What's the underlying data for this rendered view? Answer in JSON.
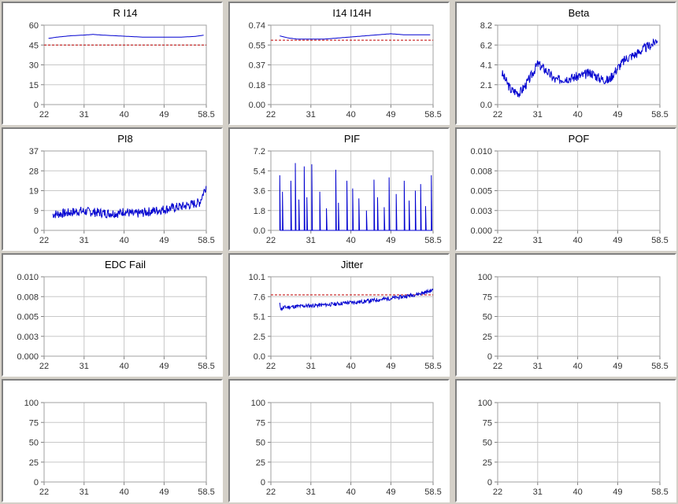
{
  "charts": [
    {
      "title": "R I14",
      "yticks": [
        "0",
        "15",
        "30",
        "45",
        "60"
      ],
      "ylim": [
        0,
        60
      ],
      "xticks": [
        "22",
        "31",
        "40",
        "49",
        "58.5"
      ],
      "xlim": [
        22,
        58.5
      ],
      "series": {
        "kind": "smooth",
        "x": [
          23,
          25,
          28,
          31,
          33,
          35,
          38,
          41,
          44,
          47,
          50,
          53,
          56,
          58
        ],
        "y": [
          50,
          51,
          52,
          52.5,
          53,
          52.5,
          52,
          51.5,
          51,
          51,
          51,
          51,
          51.5,
          52.5
        ]
      },
      "ref": 45
    },
    {
      "title": "I14 I14H",
      "yticks": [
        "0.00",
        "0.18",
        "0.37",
        "0.55",
        "0.74"
      ],
      "ylim": [
        0,
        0.74
      ],
      "xticks": [
        "22",
        "31",
        "40",
        "49",
        "58.5"
      ],
      "xlim": [
        22,
        58.5
      ],
      "series": {
        "kind": "smooth",
        "x": [
          24,
          26,
          28,
          31,
          34,
          37,
          40,
          43,
          46,
          49,
          52,
          55,
          58
        ],
        "y": [
          0.64,
          0.62,
          0.61,
          0.61,
          0.61,
          0.62,
          0.63,
          0.64,
          0.65,
          0.66,
          0.65,
          0.65,
          0.65
        ]
      },
      "ref": 0.6
    },
    {
      "title": "Beta",
      "yticks": [
        "0.0",
        "2.1",
        "4.1",
        "6.2",
        "8.2"
      ],
      "ylim": [
        0,
        8.2
      ],
      "xticks": [
        "22",
        "31",
        "40",
        "49",
        "58.5"
      ],
      "xlim": [
        22,
        58.5
      ],
      "series": {
        "kind": "noisy",
        "x": [
          23,
          25,
          27,
          29,
          31,
          33,
          35,
          37,
          39,
          41,
          43,
          45,
          47,
          49,
          51,
          53,
          55,
          57,
          58
        ],
        "y": [
          3.2,
          1.5,
          1.2,
          2.5,
          4.2,
          3.5,
          2.5,
          2.7,
          2.8,
          3.0,
          3.3,
          2.7,
          2.5,
          3.8,
          4.8,
          5.2,
          5.8,
          6.3,
          6.8
        ],
        "noise": 0.5,
        "seed": 3
      }
    },
    {
      "title": "PI8",
      "yticks": [
        "0",
        "9",
        "19",
        "28",
        "37"
      ],
      "ylim": [
        0,
        37
      ],
      "xticks": [
        "22",
        "31",
        "40",
        "49",
        "58.5"
      ],
      "xlim": [
        22,
        58.5
      ],
      "series": {
        "kind": "noisy",
        "x": [
          24,
          27,
          30,
          33,
          36,
          39,
          40,
          42,
          45,
          48,
          51,
          54,
          57,
          58.5
        ],
        "y": [
          7.5,
          8,
          9,
          8.5,
          8,
          8,
          9,
          7.5,
          8.5,
          9.5,
          10.5,
          11.5,
          13,
          21
        ],
        "noise": 2.2,
        "seed": 7
      }
    },
    {
      "title": "PIF",
      "yticks": [
        "0.0",
        "1.8",
        "3.6",
        "5.4",
        "7.2"
      ],
      "ylim": [
        0,
        7.2
      ],
      "xticks": [
        "22",
        "31",
        "40",
        "49",
        "58.5"
      ],
      "xlim": [
        22,
        58.5
      ],
      "series": {
        "kind": "spikes",
        "x": [
          24,
          24.6,
          26.5,
          27.5,
          28.3,
          29.5,
          30.1,
          31.2,
          33,
          34.5,
          36.6,
          37.2,
          39.1,
          40.4,
          41.8,
          43.5,
          45.2,
          46,
          47.5,
          48.6,
          50.2,
          52,
          53.1,
          54.5,
          55.7,
          56.8,
          58.1
        ],
        "y": [
          5.0,
          3.5,
          4.5,
          6.1,
          2.8,
          5.8,
          3.0,
          6.0,
          3.5,
          2.0,
          5.5,
          2.5,
          4.5,
          3.8,
          2.9,
          1.8,
          4.6,
          3.0,
          2.1,
          4.8,
          3.3,
          4.5,
          2.7,
          3.6,
          4.2,
          2.2,
          5.0
        ]
      }
    },
    {
      "title": "POF",
      "yticks": [
        "0.000",
        "0.003",
        "0.005",
        "0.008",
        "0.010"
      ],
      "ylim": [
        0,
        0.01
      ],
      "xticks": [
        "22",
        "31",
        "40",
        "49",
        "58.5"
      ],
      "xlim": [
        22,
        58.5
      ],
      "series": null
    },
    {
      "title": "EDC Fail",
      "yticks": [
        "0.000",
        "0.003",
        "0.005",
        "0.008",
        "0.010"
      ],
      "ylim": [
        0,
        0.01
      ],
      "xticks": [
        "22",
        "31",
        "40",
        "49",
        "58.5"
      ],
      "xlim": [
        22,
        58.5
      ],
      "series": null
    },
    {
      "title": "Jitter",
      "yticks": [
        "0.0",
        "2.5",
        "5.1",
        "7.6",
        "10.1"
      ],
      "ylim": [
        0,
        10.1
      ],
      "xticks": [
        "22",
        "31",
        "40",
        "49",
        "58.5"
      ],
      "xlim": [
        22,
        58.5
      ],
      "series": {
        "kind": "noisy",
        "x": [
          24,
          24.3,
          25,
          27,
          30,
          33,
          36,
          39,
          42,
          45,
          48,
          51,
          54,
          56,
          58.5
        ],
        "y": [
          6.6,
          6.0,
          6.2,
          6.3,
          6.4,
          6.5,
          6.6,
          6.8,
          6.9,
          7.1,
          7.3,
          7.5,
          7.8,
          8.0,
          8.4
        ],
        "noise": 0.25,
        "seed": 11
      },
      "ref": 7.8
    },
    {
      "title": "",
      "yticks": [
        "0",
        "25",
        "50",
        "75",
        "100"
      ],
      "ylim": [
        0,
        100
      ],
      "xticks": [
        "22",
        "31",
        "40",
        "49",
        "58.5"
      ],
      "xlim": [
        22,
        58.5
      ],
      "series": null
    },
    {
      "title": "",
      "yticks": [
        "0",
        "25",
        "50",
        "75",
        "100"
      ],
      "ylim": [
        0,
        100
      ],
      "xticks": [
        "22",
        "31",
        "40",
        "49",
        "58.5"
      ],
      "xlim": [
        22,
        58.5
      ],
      "series": null
    },
    {
      "title": "",
      "yticks": [
        "0",
        "25",
        "50",
        "75",
        "100"
      ],
      "ylim": [
        0,
        100
      ],
      "xticks": [
        "22",
        "31",
        "40",
        "49",
        "58.5"
      ],
      "xlim": [
        22,
        58.5
      ],
      "series": null
    },
    {
      "title": "",
      "yticks": [
        "0",
        "25",
        "50",
        "75",
        "100"
      ],
      "ylim": [
        0,
        100
      ],
      "xticks": [
        "22",
        "31",
        "40",
        "49",
        "58.5"
      ],
      "xlim": [
        22,
        58.5
      ],
      "series": null
    }
  ],
  "colors": {
    "series": "#0000d0",
    "reference": "#c00000",
    "grid": "#c8c8c8",
    "panel_bg": "#ffffff",
    "window_bg": "#d4d0c8"
  },
  "chart_data": [
    {
      "type": "line",
      "title": "R I14",
      "x": [
        23,
        31,
        40,
        49,
        58
      ],
      "y": [
        50,
        52.5,
        51.5,
        51,
        52.5
      ],
      "ref_line": 45,
      "ylim": [
        0,
        60
      ],
      "xlim": [
        22,
        58.5
      ]
    },
    {
      "type": "line",
      "title": "I14 I14H",
      "x": [
        24,
        31,
        40,
        49,
        58
      ],
      "y": [
        0.64,
        0.61,
        0.63,
        0.66,
        0.65
      ],
      "ref_line": 0.6,
      "ylim": [
        0,
        0.74
      ],
      "xlim": [
        22,
        58.5
      ]
    },
    {
      "type": "line",
      "title": "Beta",
      "x": [
        23,
        27,
        31,
        35,
        40,
        45,
        49,
        53,
        58
      ],
      "y": [
        3.2,
        1.2,
        4.2,
        2.5,
        3.2,
        2.7,
        3.8,
        5.2,
        6.8
      ],
      "ylim": [
        0,
        8.2
      ],
      "xlim": [
        22,
        58.5
      ]
    },
    {
      "type": "line",
      "title": "PI8",
      "x": [
        24,
        31,
        40,
        49,
        58.5
      ],
      "y": [
        7.5,
        9,
        9,
        10.5,
        21
      ],
      "ylim": [
        0,
        37
      ],
      "xlim": [
        22,
        58.5
      ]
    },
    {
      "type": "bar",
      "title": "PIF",
      "x": [
        24,
        27.5,
        29.5,
        31.2,
        36.6,
        39.1,
        45.2,
        48.6,
        52,
        58.1
      ],
      "y": [
        5.0,
        6.1,
        5.8,
        6.0,
        5.5,
        4.5,
        4.6,
        4.8,
        4.5,
        5.0
      ],
      "ylim": [
        0,
        7.2
      ],
      "xlim": [
        22,
        58.5
      ]
    },
    {
      "type": "line",
      "title": "POF",
      "x": [],
      "y": [],
      "ylim": [
        0,
        0.01
      ],
      "xlim": [
        22,
        58.5
      ]
    },
    {
      "type": "line",
      "title": "EDC Fail",
      "x": [],
      "y": [],
      "ylim": [
        0,
        0.01
      ],
      "xlim": [
        22,
        58.5
      ]
    },
    {
      "type": "line",
      "title": "Jitter",
      "x": [
        24,
        31,
        40,
        49,
        58.5
      ],
      "y": [
        6.6,
        6.4,
        6.8,
        7.3,
        8.4
      ],
      "ref_line": 7.8,
      "ylim": [
        0,
        10.1
      ],
      "xlim": [
        22,
        58.5
      ]
    },
    {
      "type": "line",
      "title": "",
      "x": [],
      "y": [],
      "ylim": [
        0,
        100
      ],
      "xlim": [
        22,
        58.5
      ]
    },
    {
      "type": "line",
      "title": "",
      "x": [],
      "y": [],
      "ylim": [
        0,
        100
      ],
      "xlim": [
        22,
        58.5
      ]
    },
    {
      "type": "line",
      "title": "",
      "x": [],
      "y": [],
      "ylim": [
        0,
        100
      ],
      "xlim": [
        22,
        58.5
      ]
    },
    {
      "type": "line",
      "title": "",
      "x": [],
      "y": [],
      "ylim": [
        0,
        100
      ],
      "xlim": [
        22,
        58.5
      ]
    }
  ]
}
